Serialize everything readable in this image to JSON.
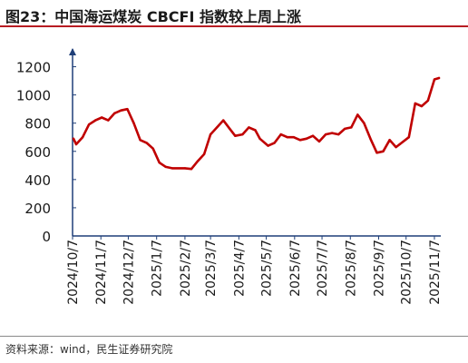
{
  "header": {
    "title": "图23：中国海运煤炭 CBCFI 指数较上周上涨"
  },
  "footer": {
    "source": "资料来源：wind，民生证券研究院"
  },
  "colors": {
    "title_rule": "#b81c22",
    "series": "#c00000",
    "axis": "#1f3f78",
    "text": "#1a1a1a"
  },
  "chart_data": {
    "type": "line",
    "title": "",
    "xlabel": "",
    "ylabel": "",
    "ylim": [
      0,
      1300
    ],
    "y_ticks": [
      0,
      200,
      400,
      600,
      800,
      1000,
      1200
    ],
    "x_range": [
      "2024-10-07",
      "2025-11-12"
    ],
    "x_tick_labels": [
      "2024/10/7",
      "2024/11/7",
      "2024/12/7",
      "2025/1/7",
      "2025/2/7",
      "2025/3/7",
      "2025/4/7",
      "2025/5/7",
      "2025/6/7",
      "2025/7/7",
      "2025/8/7",
      "2025/9/7",
      "2025/10/7",
      "2025/11/7"
    ],
    "x_tick_dates": [
      "2024-10-07",
      "2024-11-07",
      "2024-12-07",
      "2025-01-07",
      "2025-02-07",
      "2025-03-07",
      "2025-04-07",
      "2025-05-07",
      "2025-06-07",
      "2025-07-07",
      "2025-08-07",
      "2025-09-07",
      "2025-10-07",
      "2025-11-07"
    ],
    "grid": false,
    "legend": "none",
    "series": [
      {
        "x": [
          "2024-10-08",
          "2024-10-11",
          "2024-10-18",
          "2024-10-25",
          "2024-11-01",
          "2024-11-08",
          "2024-11-15",
          "2024-11-22",
          "2024-11-29",
          "2024-12-06",
          "2024-12-13",
          "2024-12-20",
          "2024-12-27",
          "2025-01-03",
          "2025-01-10",
          "2025-01-17",
          "2025-01-24",
          "2025-02-07",
          "2025-02-14",
          "2025-02-21",
          "2025-02-28",
          "2025-03-07",
          "2025-03-14",
          "2025-03-21",
          "2025-03-28",
          "2025-04-03",
          "2025-04-11",
          "2025-04-18",
          "2025-04-25",
          "2025-04-30",
          "2025-05-09",
          "2025-05-16",
          "2025-05-23",
          "2025-05-30",
          "2025-06-06",
          "2025-06-13",
          "2025-06-20",
          "2025-06-27",
          "2025-07-04",
          "2025-07-11",
          "2025-07-18",
          "2025-07-25",
          "2025-08-01",
          "2025-08-08",
          "2025-08-15",
          "2025-08-22",
          "2025-08-29",
          "2025-09-05",
          "2025-09-12",
          "2025-09-19",
          "2025-09-26",
          "2025-09-30",
          "2025-10-10",
          "2025-10-17",
          "2025-10-24",
          "2025-10-31",
          "2025-11-07",
          "2025-11-12"
        ],
        "y": [
          690,
          650,
          700,
          790,
          820,
          840,
          820,
          870,
          890,
          900,
          800,
          680,
          660,
          620,
          520,
          490,
          480,
          480,
          475,
          530,
          580,
          720,
          770,
          820,
          760,
          710,
          720,
          770,
          750,
          690,
          640,
          660,
          720,
          700,
          700,
          680,
          690,
          710,
          670,
          720,
          730,
          720,
          760,
          770,
          860,
          800,
          690,
          590,
          600,
          680,
          630,
          650,
          700,
          940,
          920,
          960,
          1110,
          1120
        ]
      }
    ]
  }
}
